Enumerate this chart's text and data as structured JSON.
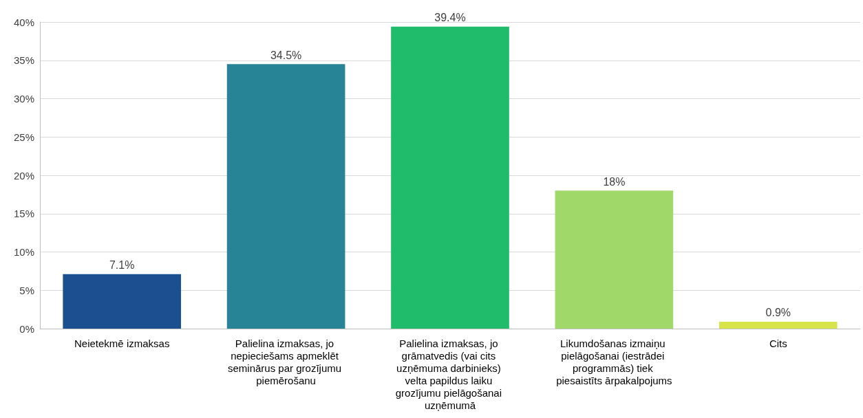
{
  "chart_data": {
    "type": "bar",
    "categories": [
      "Neietekmē izmaksas",
      "Palielina izmaksas, jo nepieciešams apmeklēt seminārus par grozījumu piemērošanu",
      "Palielina izmaksas, jo grāmatvedis (vai cits uzņēmuma darbinieks) velta papildus laiku grozījumu pielāgošanai uzņēmumā",
      "Likumdošanas izmaiņu pielāgošanai (iestrādei programmās) tiek piesaistīts ārpakalpojums",
      "Cits"
    ],
    "values": [
      7.1,
      34.5,
      39.4,
      18,
      0.9
    ],
    "colors": [
      "#1b4f8f",
      "#268496",
      "#20bc6c",
      "#a0d869",
      "#d8e54a"
    ],
    "value_labels": [
      "7.1%",
      "34.5%",
      "39.4%",
      "18%",
      "0.9%"
    ],
    "ylim": [
      0,
      40
    ],
    "yticks": [
      {
        "value": 0,
        "label": "0%"
      },
      {
        "value": 5,
        "label": "5%"
      },
      {
        "value": 10,
        "label": "10%"
      },
      {
        "value": 15,
        "label": "15%"
      },
      {
        "value": 20,
        "label": "20%"
      },
      {
        "value": 25,
        "label": "25%"
      },
      {
        "value": 30,
        "label": "30%"
      },
      {
        "value": 35,
        "label": "35%"
      },
      {
        "value": 40,
        "label": "40%"
      }
    ],
    "grid": "y"
  }
}
